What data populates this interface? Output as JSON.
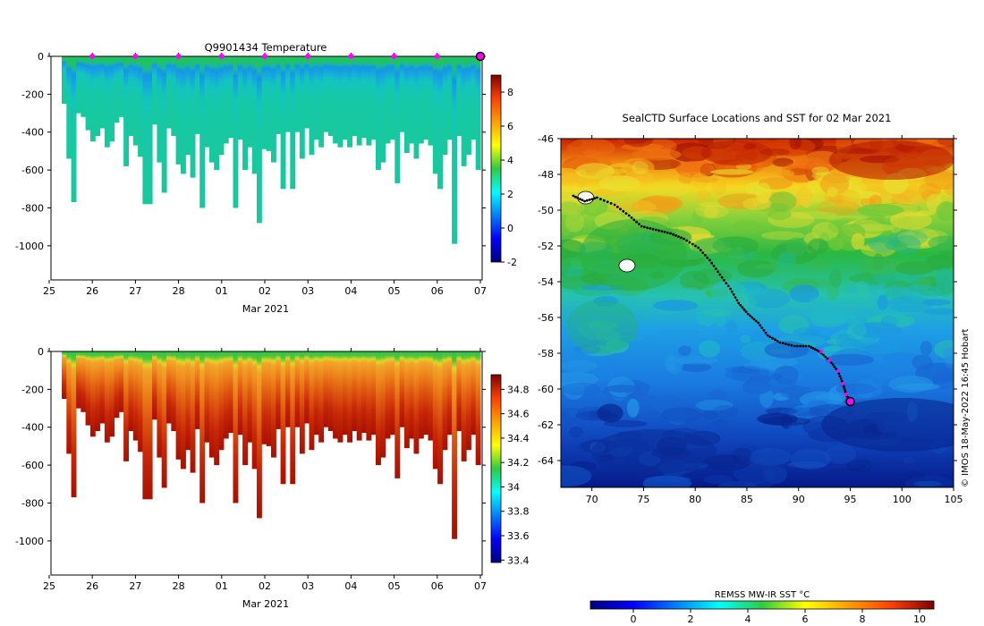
{
  "chart_data": [
    {
      "type": "heatmap",
      "title": "Q9901434  Temperature",
      "xlabel": "Mar 2021",
      "x_ticks": [
        "25",
        "26",
        "27",
        "28",
        "01",
        "02",
        "03",
        "04",
        "05",
        "06",
        "07"
      ],
      "y_ticks": [
        0,
        -200,
        -400,
        -600,
        -800,
        -1000
      ],
      "ylim": [
        -1180,
        0
      ],
      "colorbar": {
        "ticks": [
          -2,
          0,
          2,
          4,
          6,
          8
        ],
        "range": [
          -2,
          9
        ],
        "colormap": "jet"
      },
      "description": "Depth-time section of temperature (°C) from seal-borne CTD profiles",
      "marker_days": [
        26,
        27,
        28,
        1,
        2,
        3,
        4,
        5,
        6
      ],
      "end_marker_day": 7
    },
    {
      "type": "heatmap",
      "title": "",
      "xlabel": "Mar 2021",
      "x_ticks": [
        "25",
        "26",
        "27",
        "28",
        "01",
        "02",
        "03",
        "04",
        "05",
        "06",
        "07"
      ],
      "y_ticks": [
        0,
        -200,
        -400,
        -600,
        -800,
        -1000
      ],
      "ylim": [
        -1180,
        0
      ],
      "colorbar": {
        "ticks": [
          33.4,
          33.6,
          33.8,
          34,
          34.2,
          34.4,
          34.6,
          34.8
        ],
        "range": [
          33.38,
          34.92
        ],
        "colormap": "jet"
      },
      "description": "Depth-time section of salinity from seal-borne CTD profiles"
    },
    {
      "type": "heatmap",
      "title": "SealCTD Surface Locations and SST for 02 Mar 2021",
      "x_ticks": [
        70,
        75,
        80,
        85,
        90,
        95,
        100,
        105
      ],
      "y_ticks": [
        -46,
        -48,
        -50,
        -52,
        -54,
        -56,
        -58,
        -60,
        -62,
        -64
      ],
      "xlim": [
        67,
        105
      ],
      "ylim": [
        -65.5,
        -46
      ],
      "colorbar": {
        "label": "REMSS MW-IR SST °C",
        "ticks": [
          0,
          2,
          4,
          6,
          8,
          10
        ],
        "range": [
          -1.5,
          10.5
        ],
        "colormap": "jet"
      },
      "track": [
        [
          68.2,
          -49.2
        ],
        [
          69.3,
          -49.5
        ],
        [
          70.5,
          -49.3
        ],
        [
          72.2,
          -49.7
        ],
        [
          73.6,
          -50.3
        ],
        [
          74.8,
          -50.9
        ],
        [
          76.2,
          -51.1
        ],
        [
          77.6,
          -51.3
        ],
        [
          78.9,
          -51.6
        ],
        [
          80.3,
          -52.1
        ],
        [
          81.4,
          -52.8
        ],
        [
          82.4,
          -53.6
        ],
        [
          83.4,
          -54.4
        ],
        [
          84.2,
          -55.2
        ],
        [
          85.1,
          -55.8
        ],
        [
          86.1,
          -56.3
        ],
        [
          87.0,
          -57.0
        ],
        [
          88.2,
          -57.4
        ],
        [
          89.6,
          -57.6
        ],
        [
          91.0,
          -57.6
        ],
        [
          92.0,
          -57.9
        ],
        [
          93.0,
          -58.4
        ],
        [
          93.8,
          -59.0
        ],
        [
          94.3,
          -59.7
        ],
        [
          94.6,
          -60.3
        ],
        [
          95.0,
          -60.7
        ]
      ],
      "recent_track": [
        [
          92.2,
          -57.9
        ],
        [
          93.0,
          -58.4
        ],
        [
          93.8,
          -59.0
        ],
        [
          94.3,
          -59.7
        ],
        [
          94.6,
          -60.3
        ]
      ],
      "end_position": [
        95.0,
        -60.7
      ],
      "islands": [
        [
          69.4,
          -49.3
        ],
        [
          73.4,
          -53.1
        ]
      ],
      "credit": "© IMOS 18-May-2022 16:45 Hobart"
    }
  ]
}
